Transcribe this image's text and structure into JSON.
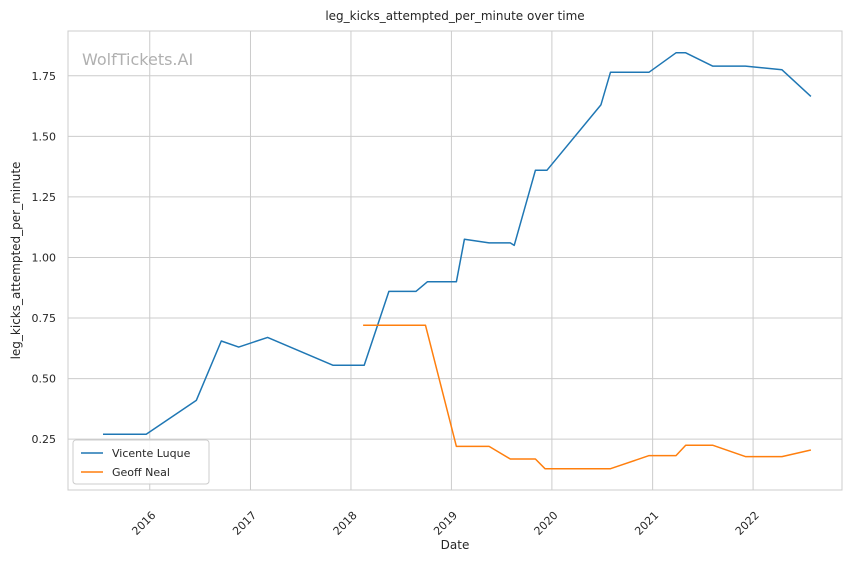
{
  "chart_data": {
    "type": "line",
    "title": "leg_kicks_attempted_per_minute over time",
    "xlabel": "Date",
    "ylabel": "leg_kicks_attempted_per_minute",
    "watermark": "WolfTickets.AI",
    "xlim": [
      "2015-03-10",
      "2022-11-20"
    ],
    "ylim": [
      0.04,
      1.935
    ],
    "x_ticks": [
      "2016-01-01",
      "2017-01-01",
      "2018-01-01",
      "2019-01-01",
      "2020-01-01",
      "2021-01-01",
      "2022-01-01"
    ],
    "x_tick_labels": [
      "2016",
      "2017",
      "2018",
      "2019",
      "2020",
      "2021",
      "2022"
    ],
    "y_ticks": [
      0.25,
      0.5,
      0.75,
      1.0,
      1.25,
      1.5,
      1.75
    ],
    "y_tick_labels": [
      "0.25",
      "0.50",
      "0.75",
      "1.00",
      "1.25",
      "1.50",
      "1.75"
    ],
    "grid": true,
    "legend_position": "lower-left",
    "series": [
      {
        "name": "Vicente Luque",
        "color": "#1f77b4",
        "points": [
          [
            "2015-07-15",
            0.27
          ],
          [
            "2015-12-19",
            0.27
          ],
          [
            "2016-06-18",
            0.41
          ],
          [
            "2016-09-17",
            0.655
          ],
          [
            "2016-11-19",
            0.63
          ],
          [
            "2017-03-04",
            0.67
          ],
          [
            "2017-10-28",
            0.555
          ],
          [
            "2018-02-18",
            0.555
          ],
          [
            "2018-05-19",
            0.86
          ],
          [
            "2018-08-25",
            0.86
          ],
          [
            "2018-10-06",
            0.9
          ],
          [
            "2019-01-19",
            0.9
          ],
          [
            "2019-02-17",
            1.075
          ],
          [
            "2019-05-18",
            1.06
          ],
          [
            "2019-08-03",
            1.06
          ],
          [
            "2019-08-17",
            1.05
          ],
          [
            "2019-11-02",
            1.36
          ],
          [
            "2019-12-14",
            1.36
          ],
          [
            "2020-06-27",
            1.63
          ],
          [
            "2020-08-01",
            1.765
          ],
          [
            "2020-12-19",
            1.765
          ],
          [
            "2021-03-27",
            1.845
          ],
          [
            "2021-05-01",
            1.845
          ],
          [
            "2021-08-07",
            1.79
          ],
          [
            "2021-12-04",
            1.79
          ],
          [
            "2022-04-16",
            1.775
          ],
          [
            "2022-07-30",
            1.665
          ]
        ]
      },
      {
        "name": "Geoff Neal",
        "color": "#ff7f0e",
        "points": [
          [
            "2018-02-14",
            0.72
          ],
          [
            "2018-09-29",
            0.72
          ],
          [
            "2019-01-19",
            0.22
          ],
          [
            "2019-05-18",
            0.22
          ],
          [
            "2019-08-03",
            0.168
          ],
          [
            "2019-11-02",
            0.168
          ],
          [
            "2019-12-07",
            0.128
          ],
          [
            "2020-08-01",
            0.128
          ],
          [
            "2020-12-19",
            0.182
          ],
          [
            "2021-03-27",
            0.182
          ],
          [
            "2021-05-01",
            0.225
          ],
          [
            "2021-08-07",
            0.225
          ],
          [
            "2021-12-04",
            0.178
          ],
          [
            "2022-04-16",
            0.178
          ],
          [
            "2022-07-30",
            0.205
          ]
        ]
      }
    ]
  }
}
